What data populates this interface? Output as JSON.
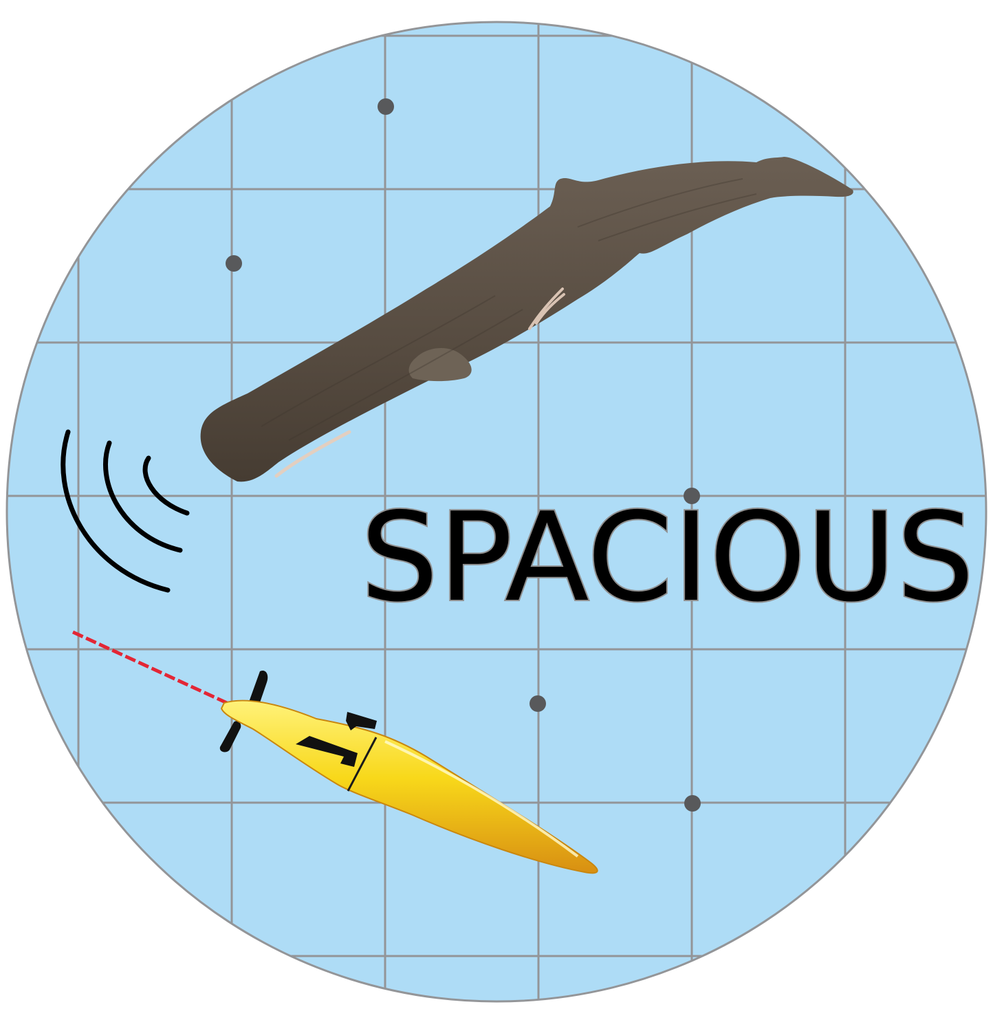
{
  "logo": {
    "wordmark": "SPACIOUS",
    "colors": {
      "ocean": "#aedcf6",
      "grid": "#939598",
      "marker": "#58595b",
      "whale": "#5a4f44",
      "glider": "#f7d417",
      "sound_waves": "#000000"
    },
    "markers": 6,
    "grid_lines_visible": true,
    "illustrations": [
      "sperm-whale",
      "underwater-glider",
      "sound-waves"
    ]
  }
}
